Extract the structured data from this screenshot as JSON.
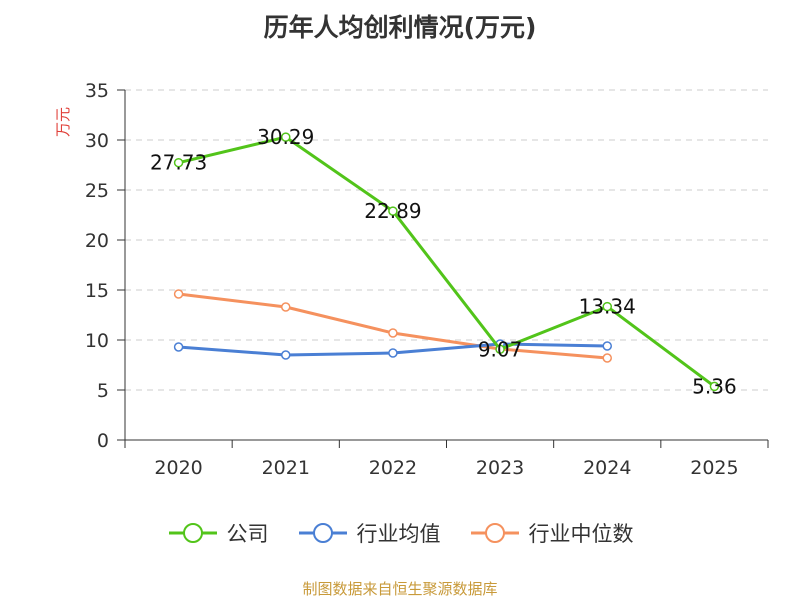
{
  "chart_data": {
    "type": "line",
    "title": "历年人均创利情况(万元)",
    "xlabel": "",
    "ylabel": "万元",
    "ylim": [
      0,
      35
    ],
    "yticks": [
      0,
      5,
      10,
      15,
      20,
      25,
      30,
      35
    ],
    "categories": [
      "2020",
      "2021",
      "2022",
      "2023",
      "2024",
      "2025"
    ],
    "grid": true,
    "series": [
      {
        "name": "公司",
        "color": "#52c41a",
        "values": [
          27.73,
          30.29,
          22.89,
          9.07,
          13.34,
          5.36
        ],
        "labels": [
          "27.73",
          "30.29",
          "22.89",
          "9.07",
          "13.34",
          "5.36"
        ]
      },
      {
        "name": "行业均值",
        "color": "#4a7fd4",
        "values": [
          9.3,
          8.5,
          8.7,
          9.6,
          9.4,
          null
        ],
        "labels": null
      },
      {
        "name": "行业中位数",
        "color": "#f5915e",
        "values": [
          14.6,
          13.3,
          10.7,
          9.1,
          8.2,
          null
        ],
        "labels": null
      }
    ],
    "ylabel_color": "#e0403a",
    "source": "制图数据来自恒生聚源数据库",
    "source_color": "#c89a3a"
  }
}
